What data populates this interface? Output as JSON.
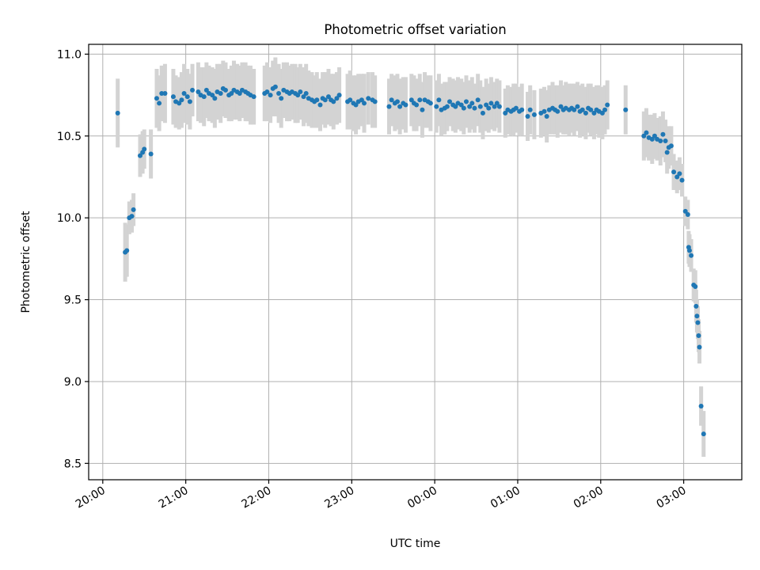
{
  "chart_data": {
    "type": "scatter",
    "title": "Photometric offset variation",
    "xlabel": "UTC time",
    "ylabel": "Photometric offset",
    "x_unit": "hours (UTC)",
    "xlim": [
      19.83,
      27.7
    ],
    "ylim": [
      8.4,
      11.06
    ],
    "grid": true,
    "xticks": [
      {
        "v": 20,
        "label": "20:00"
      },
      {
        "v": 21,
        "label": "21:00"
      },
      {
        "v": 22,
        "label": "22:00"
      },
      {
        "v": 23,
        "label": "23:00"
      },
      {
        "v": 24,
        "label": "00:00"
      },
      {
        "v": 25,
        "label": "01:00"
      },
      {
        "v": 26,
        "label": "02:00"
      },
      {
        "v": 27,
        "label": "03:00"
      }
    ],
    "yticks": [
      {
        "v": 8.5,
        "label": "8.5"
      },
      {
        "v": 9.0,
        "label": "9.0"
      },
      {
        "v": 9.5,
        "label": "9.5"
      },
      {
        "v": 10.0,
        "label": "10.0"
      },
      {
        "v": 10.5,
        "label": "10.5"
      },
      {
        "v": 11.0,
        "label": "11.0"
      }
    ],
    "colors": {
      "marker": "#1f77b4",
      "errorbar": "#d3d3d3"
    },
    "points": [
      [
        20.18,
        10.64,
        0.21
      ],
      [
        20.27,
        9.79,
        0.18
      ],
      [
        20.29,
        9.8,
        0.16
      ],
      [
        20.32,
        10.0,
        0.1
      ],
      [
        20.35,
        10.01,
        0.1
      ],
      [
        20.37,
        10.05,
        0.1
      ],
      [
        20.45,
        10.38,
        0.13
      ],
      [
        20.48,
        10.4,
        0.13
      ],
      [
        20.5,
        10.42,
        0.12
      ],
      [
        20.58,
        10.39,
        0.15
      ],
      [
        20.65,
        10.73,
        0.18
      ],
      [
        20.68,
        10.7,
        0.17
      ],
      [
        20.71,
        10.76,
        0.17
      ],
      [
        20.75,
        10.76,
        0.18
      ],
      [
        20.85,
        10.74,
        0.17
      ],
      [
        20.88,
        10.71,
        0.16
      ],
      [
        20.92,
        10.7,
        0.16
      ],
      [
        20.95,
        10.72,
        0.17
      ],
      [
        20.98,
        10.76,
        0.18
      ],
      [
        21.02,
        10.74,
        0.17
      ],
      [
        21.05,
        10.71,
        0.17
      ],
      [
        21.08,
        10.78,
        0.16
      ],
      [
        21.15,
        10.77,
        0.18
      ],
      [
        21.18,
        10.75,
        0.17
      ],
      [
        21.22,
        10.74,
        0.18
      ],
      [
        21.25,
        10.78,
        0.17
      ],
      [
        21.28,
        10.76,
        0.17
      ],
      [
        21.32,
        10.75,
        0.17
      ],
      [
        21.35,
        10.73,
        0.18
      ],
      [
        21.38,
        10.77,
        0.17
      ],
      [
        21.42,
        10.76,
        0.18
      ],
      [
        21.45,
        10.79,
        0.17
      ],
      [
        21.48,
        10.78,
        0.17
      ],
      [
        21.52,
        10.75,
        0.16
      ],
      [
        21.55,
        10.76,
        0.17
      ],
      [
        21.58,
        10.78,
        0.18
      ],
      [
        21.62,
        10.77,
        0.17
      ],
      [
        21.65,
        10.76,
        0.17
      ],
      [
        21.68,
        10.78,
        0.17
      ],
      [
        21.72,
        10.77,
        0.18
      ],
      [
        21.75,
        10.76,
        0.17
      ],
      [
        21.78,
        10.75,
        0.18
      ],
      [
        21.82,
        10.74,
        0.17
      ],
      [
        21.95,
        10.76,
        0.17
      ],
      [
        21.98,
        10.77,
        0.18
      ],
      [
        22.02,
        10.75,
        0.17
      ],
      [
        22.05,
        10.79,
        0.17
      ],
      [
        22.08,
        10.8,
        0.18
      ],
      [
        22.12,
        10.76,
        0.18
      ],
      [
        22.15,
        10.73,
        0.18
      ],
      [
        22.18,
        10.78,
        0.17
      ],
      [
        22.22,
        10.77,
        0.18
      ],
      [
        22.25,
        10.76,
        0.17
      ],
      [
        22.28,
        10.77,
        0.17
      ],
      [
        22.32,
        10.76,
        0.18
      ],
      [
        22.35,
        10.75,
        0.17
      ],
      [
        22.38,
        10.77,
        0.17
      ],
      [
        22.42,
        10.74,
        0.18
      ],
      [
        22.45,
        10.76,
        0.18
      ],
      [
        22.48,
        10.73,
        0.17
      ],
      [
        22.52,
        10.72,
        0.17
      ],
      [
        22.55,
        10.71,
        0.16
      ],
      [
        22.58,
        10.72,
        0.17
      ],
      [
        22.62,
        10.69,
        0.16
      ],
      [
        22.65,
        10.73,
        0.16
      ],
      [
        22.68,
        10.72,
        0.17
      ],
      [
        22.72,
        10.74,
        0.17
      ],
      [
        22.75,
        10.72,
        0.16
      ],
      [
        22.78,
        10.71,
        0.17
      ],
      [
        22.82,
        10.73,
        0.16
      ],
      [
        22.85,
        10.75,
        0.17
      ],
      [
        22.95,
        10.71,
        0.17
      ],
      [
        22.98,
        10.72,
        0.18
      ],
      [
        23.02,
        10.7,
        0.17
      ],
      [
        23.05,
        10.69,
        0.18
      ],
      [
        23.08,
        10.71,
        0.17
      ],
      [
        23.12,
        10.72,
        0.16
      ],
      [
        23.15,
        10.7,
        0.18
      ],
      [
        23.2,
        10.73,
        0.16
      ],
      [
        23.25,
        10.72,
        0.17
      ],
      [
        23.28,
        10.71,
        0.16
      ],
      [
        23.45,
        10.68,
        0.17
      ],
      [
        23.48,
        10.72,
        0.16
      ],
      [
        23.52,
        10.7,
        0.17
      ],
      [
        23.55,
        10.71,
        0.17
      ],
      [
        23.58,
        10.68,
        0.17
      ],
      [
        23.62,
        10.7,
        0.16
      ],
      [
        23.65,
        10.69,
        0.17
      ],
      [
        23.72,
        10.72,
        0.16
      ],
      [
        23.75,
        10.7,
        0.17
      ],
      [
        23.78,
        10.69,
        0.16
      ],
      [
        23.82,
        10.72,
        0.16
      ],
      [
        23.85,
        10.66,
        0.17
      ],
      [
        23.88,
        10.72,
        0.17
      ],
      [
        23.92,
        10.71,
        0.16
      ],
      [
        23.95,
        10.7,
        0.17
      ],
      [
        24.02,
        10.68,
        0.16
      ],
      [
        24.05,
        10.72,
        0.16
      ],
      [
        24.08,
        10.66,
        0.16
      ],
      [
        24.12,
        10.67,
        0.16
      ],
      [
        24.15,
        10.68,
        0.15
      ],
      [
        24.18,
        10.71,
        0.15
      ],
      [
        24.22,
        10.69,
        0.16
      ],
      [
        24.25,
        10.68,
        0.16
      ],
      [
        24.28,
        10.7,
        0.16
      ],
      [
        24.32,
        10.69,
        0.16
      ],
      [
        24.35,
        10.67,
        0.16
      ],
      [
        24.38,
        10.71,
        0.16
      ],
      [
        24.42,
        10.68,
        0.16
      ],
      [
        24.45,
        10.7,
        0.16
      ],
      [
        24.48,
        10.67,
        0.15
      ],
      [
        24.52,
        10.72,
        0.16
      ],
      [
        24.55,
        10.68,
        0.16
      ],
      [
        24.58,
        10.64,
        0.16
      ],
      [
        24.62,
        10.69,
        0.16
      ],
      [
        24.65,
        10.67,
        0.15
      ],
      [
        24.68,
        10.7,
        0.16
      ],
      [
        24.72,
        10.68,
        0.15
      ],
      [
        24.75,
        10.7,
        0.15
      ],
      [
        24.78,
        10.68,
        0.16
      ],
      [
        24.85,
        10.64,
        0.15
      ],
      [
        24.88,
        10.66,
        0.15
      ],
      [
        24.92,
        10.65,
        0.15
      ],
      [
        24.95,
        10.66,
        0.16
      ],
      [
        24.98,
        10.67,
        0.15
      ],
      [
        25.02,
        10.65,
        0.15
      ],
      [
        25.05,
        10.66,
        0.16
      ],
      [
        25.12,
        10.62,
        0.15
      ],
      [
        25.15,
        10.66,
        0.15
      ],
      [
        25.2,
        10.63,
        0.15
      ],
      [
        25.28,
        10.64,
        0.15
      ],
      [
        25.32,
        10.65,
        0.15
      ],
      [
        25.35,
        10.62,
        0.16
      ],
      [
        25.38,
        10.66,
        0.15
      ],
      [
        25.42,
        10.67,
        0.16
      ],
      [
        25.45,
        10.66,
        0.15
      ],
      [
        25.48,
        10.65,
        0.16
      ],
      [
        25.52,
        10.68,
        0.16
      ],
      [
        25.55,
        10.66,
        0.15
      ],
      [
        25.58,
        10.67,
        0.16
      ],
      [
        25.62,
        10.66,
        0.16
      ],
      [
        25.65,
        10.67,
        0.15
      ],
      [
        25.68,
        10.66,
        0.16
      ],
      [
        25.72,
        10.68,
        0.15
      ],
      [
        25.75,
        10.65,
        0.16
      ],
      [
        25.78,
        10.66,
        0.16
      ],
      [
        25.82,
        10.64,
        0.16
      ],
      [
        25.85,
        10.67,
        0.15
      ],
      [
        25.88,
        10.66,
        0.16
      ],
      [
        25.92,
        10.64,
        0.16
      ],
      [
        25.95,
        10.66,
        0.15
      ],
      [
        25.98,
        10.65,
        0.16
      ],
      [
        26.02,
        10.64,
        0.16
      ],
      [
        26.05,
        10.66,
        0.15
      ],
      [
        26.08,
        10.69,
        0.15
      ],
      [
        26.3,
        10.66,
        0.15
      ],
      [
        26.52,
        10.5,
        0.15
      ],
      [
        26.55,
        10.52,
        0.15
      ],
      [
        26.58,
        10.49,
        0.14
      ],
      [
        26.62,
        10.48,
        0.15
      ],
      [
        26.65,
        10.5,
        0.14
      ],
      [
        26.68,
        10.48,
        0.13
      ],
      [
        26.72,
        10.47,
        0.15
      ],
      [
        26.75,
        10.51,
        0.14
      ],
      [
        26.78,
        10.47,
        0.13
      ],
      [
        26.8,
        10.4,
        0.13
      ],
      [
        26.82,
        10.43,
        0.13
      ],
      [
        26.85,
        10.44,
        0.12
      ],
      [
        26.88,
        10.28,
        0.11
      ],
      [
        26.92,
        10.25,
        0.1
      ],
      [
        26.95,
        10.27,
        0.1
      ],
      [
        26.98,
        10.23,
        0.1
      ],
      [
        27.02,
        10.04,
        0.09
      ],
      [
        27.05,
        10.02,
        0.09
      ],
      [
        27.06,
        9.82,
        0.1
      ],
      [
        27.07,
        9.8,
        0.1
      ],
      [
        27.09,
        9.77,
        0.1
      ],
      [
        27.12,
        9.59,
        0.1
      ],
      [
        27.14,
        9.58,
        0.1
      ],
      [
        27.15,
        9.46,
        0.1
      ],
      [
        27.16,
        9.4,
        0.1
      ],
      [
        27.17,
        9.36,
        0.1
      ],
      [
        27.18,
        9.28,
        0.1
      ],
      [
        27.19,
        9.21,
        0.1
      ],
      [
        27.21,
        8.85,
        0.12
      ],
      [
        27.24,
        8.68,
        0.14
      ]
    ]
  }
}
